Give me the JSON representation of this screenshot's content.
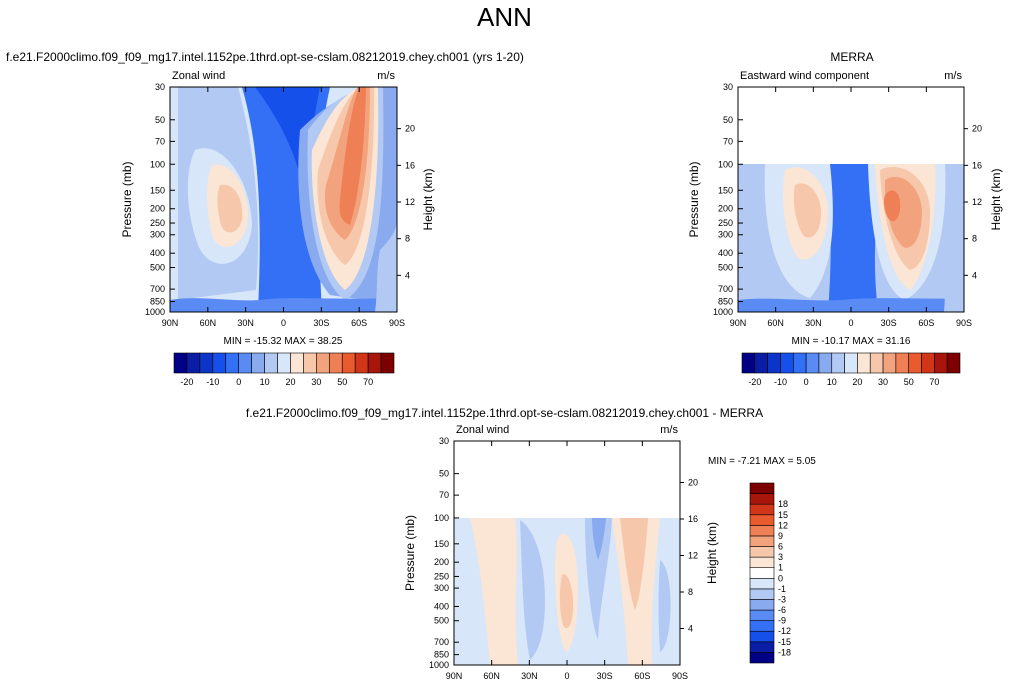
{
  "title": "ANN",
  "case_name": "f.e21.F2000climo.f09_f09_mg17.intel.1152pe.1thrd.opt-se-cslam.08212019.chey.ch001 (yrs 1-20)",
  "obs_name": "MERRA",
  "diff_name": "f.e21.F2000climo.f09_f09_mg17.intel.1152pe.1thrd.opt-se-cslam.08212019.chey.ch001 - MERRA",
  "panels": {
    "case": {
      "field": "Zonal wind",
      "units": "m/s",
      "min_max": "MIN = -15.32  MAX =  38.25"
    },
    "obs": {
      "field": "Eastward wind component",
      "units": "m/s",
      "min_max": "MIN = -10.17  MAX =  31.16"
    },
    "diff": {
      "field": "Zonal wind",
      "units": "m/s",
      "min_max": "MIN =  -7.21  MAX =   5.05"
    }
  },
  "axes": {
    "y_label": "Pressure (mb)",
    "y2_label": "Height (km)",
    "pressure_ticks": [
      "30",
      "50",
      "70",
      "100",
      "150",
      "200",
      "250",
      "300",
      "400",
      "500",
      "700",
      "850",
      "1000"
    ],
    "height_ticks": [
      "4",
      "8",
      "12",
      "16",
      "20"
    ],
    "lat_ticks": [
      "90N",
      "60N",
      "30N",
      "0",
      "30S",
      "60S",
      "90S"
    ]
  },
  "colors": {
    "wind_palette": [
      "#000087",
      "#0a1ea5",
      "#0c35c8",
      "#1550eb",
      "#3470f5",
      "#5a8bf5",
      "#8aaaf0",
      "#b2c9f3",
      "#d8e6fa",
      "#fbe5d4",
      "#f6c7ab",
      "#f2a37d",
      "#ef7f55",
      "#ea5a2f",
      "#d13618",
      "#a8150b",
      "#7d0000"
    ],
    "diff_palette": [
      "#000087",
      "#0a1ea5",
      "#1550eb",
      "#3470f5",
      "#5a8bf5",
      "#8aaaf0",
      "#b2c9f3",
      "#d8e6fa",
      "#ffffff",
      "#fbe5d4",
      "#f6c7ab",
      "#f2a37d",
      "#ef7f55",
      "#ea5a2f",
      "#d13618",
      "#a8150b",
      "#7d0000"
    ]
  },
  "chart_data": [
    {
      "type": "heatmap",
      "title": "Zonal wind",
      "units": "m/s",
      "xlabel": "",
      "ylabel": "Pressure (mb)",
      "y2label": "Height (km)",
      "x_range": [
        90,
        -90
      ],
      "y_range_mb": [
        1000,
        30
      ],
      "y_scale": "log",
      "contour_levels": [
        -20,
        -15,
        -10,
        -5,
        0,
        5,
        10,
        15,
        20,
        25,
        30,
        35,
        40,
        50,
        60,
        70
      ],
      "colorbar_labels": [
        "-20",
        "-10",
        "0",
        "10",
        "20",
        "30",
        "50",
        "70"
      ],
      "lat": [
        90,
        75,
        60,
        45,
        30,
        15,
        0,
        -15,
        -30,
        -45,
        -60,
        -75,
        -90
      ],
      "lev": [
        30,
        50,
        70,
        100,
        150,
        200,
        250,
        300,
        400,
        500,
        700,
        850,
        1000
      ],
      "values": [
        [
          0,
          2,
          4,
          3,
          -2,
          -12,
          -14,
          -12,
          5,
          25,
          35,
          20,
          0
        ],
        [
          0,
          2,
          4,
          3,
          -2,
          -12,
          -14,
          -12,
          2,
          20,
          30,
          15,
          0
        ],
        [
          0,
          3,
          6,
          6,
          -2,
          -10,
          -12,
          -10,
          5,
          18,
          25,
          12,
          0
        ],
        [
          0,
          4,
          8,
          12,
          2,
          -6,
          -8,
          -6,
          10,
          20,
          22,
          10,
          0
        ],
        [
          0,
          5,
          10,
          20,
          8,
          -4,
          -6,
          -4,
          15,
          30,
          26,
          8,
          0
        ],
        [
          0,
          5,
          12,
          24,
          12,
          -3,
          -5,
          -2,
          20,
          35,
          30,
          10,
          0
        ],
        [
          0,
          5,
          12,
          22,
          10,
          -4,
          -6,
          -3,
          18,
          32,
          28,
          10,
          0
        ],
        [
          0,
          4,
          10,
          18,
          8,
          -4,
          -6,
          -3,
          14,
          28,
          24,
          8,
          0
        ],
        [
          0,
          3,
          8,
          12,
          6,
          -4,
          -6,
          -3,
          10,
          22,
          18,
          6,
          0
        ],
        [
          0,
          2,
          6,
          8,
          4,
          -4,
          -6,
          -3,
          6,
          16,
          14,
          4,
          0
        ],
        [
          0,
          0,
          2,
          4,
          0,
          -6,
          -8,
          -4,
          2,
          8,
          8,
          0,
          0
        ],
        [
          0,
          -4,
          -2,
          2,
          -2,
          -8,
          -10,
          -6,
          0,
          4,
          4,
          -2,
          0
        ],
        [
          0,
          -5,
          -3,
          0,
          -3,
          -8,
          -10,
          -6,
          -2,
          2,
          2,
          -3,
          0
        ]
      ],
      "min": -15.32,
      "max": 38.25
    },
    {
      "type": "heatmap",
      "title": "Eastward wind component",
      "units": "m/s",
      "xlabel": "",
      "ylabel": "Pressure (mb)",
      "y2label": "Height (km)",
      "x_range": [
        90,
        -90
      ],
      "y_range_mb": [
        1000,
        30
      ],
      "y_scale": "log",
      "data_top_mb": 100,
      "contour_levels": [
        -20,
        -15,
        -10,
        -5,
        0,
        5,
        10,
        15,
        20,
        25,
        30,
        35,
        40,
        50,
        60,
        70
      ],
      "colorbar_labels": [
        "-20",
        "-10",
        "0",
        "10",
        "20",
        "30",
        "50",
        "70"
      ],
      "lat": [
        90,
        75,
        60,
        45,
        30,
        15,
        0,
        -15,
        -30,
        -45,
        -60,
        -75,
        -90
      ],
      "lev": [
        100,
        150,
        200,
        250,
        300,
        400,
        500,
        700,
        850,
        1000
      ],
      "values": [
        [
          0,
          4,
          10,
          18,
          8,
          -4,
          -6,
          -3,
          14,
          22,
          18,
          6,
          0
        ],
        [
          0,
          4,
          10,
          22,
          10,
          -4,
          -6,
          -2,
          18,
          28,
          22,
          8,
          0
        ],
        [
          0,
          4,
          10,
          24,
          12,
          -3,
          -5,
          -2,
          20,
          30,
          24,
          8,
          0
        ],
        [
          0,
          4,
          10,
          22,
          10,
          -4,
          -5,
          -3,
          18,
          28,
          24,
          8,
          0
        ],
        [
          0,
          3,
          8,
          18,
          8,
          -4,
          -5,
          -3,
          14,
          24,
          22,
          6,
          0
        ],
        [
          0,
          2,
          6,
          12,
          6,
          -4,
          -6,
          -3,
          10,
          18,
          16,
          4,
          0
        ],
        [
          0,
          2,
          4,
          8,
          4,
          -4,
          -6,
          -3,
          6,
          12,
          12,
          2,
          0
        ],
        [
          0,
          0,
          2,
          4,
          0,
          -6,
          -8,
          -4,
          2,
          6,
          6,
          0,
          0
        ],
        [
          0,
          -2,
          0,
          2,
          -2,
          -8,
          -10,
          -6,
          0,
          3,
          3,
          -2,
          0
        ],
        [
          0,
          -3,
          -1,
          0,
          -3,
          -8,
          -10,
          -6,
          -2,
          2,
          2,
          -3,
          0
        ]
      ],
      "min": -10.17,
      "max": 31.16
    },
    {
      "type": "heatmap",
      "title": "Zonal wind",
      "units": "m/s",
      "xlabel": "",
      "ylabel": "Pressure (mb)",
      "y2label": "Height (km)",
      "x_range": [
        90,
        -90
      ],
      "y_range_mb": [
        1000,
        30
      ],
      "y_scale": "log",
      "data_top_mb": 100,
      "contour_levels": [
        -18,
        -15,
        -12,
        -9,
        -6,
        -3,
        -1,
        0,
        1,
        3,
        6,
        9,
        12,
        15,
        18
      ],
      "colorbar_labels": [
        "-18",
        "-15",
        "-12",
        "-9",
        "-6",
        "-3",
        "-1",
        "0",
        "1",
        "3",
        "6",
        "9",
        "12",
        "15",
        "18"
      ],
      "lat": [
        90,
        75,
        60,
        45,
        30,
        15,
        0,
        -15,
        -30,
        -45,
        -60,
        -75,
        -90
      ],
      "lev": [
        100,
        150,
        200,
        250,
        300,
        400,
        500,
        700,
        850,
        1000
      ],
      "values": [
        [
          0,
          1,
          2,
          1,
          -1,
          -2,
          0,
          -2,
          -1,
          3,
          2,
          0,
          0
        ],
        [
          0,
          1,
          3,
          1,
          -1,
          -3,
          1,
          -3,
          -1,
          3,
          3,
          0,
          -1
        ],
        [
          0,
          2,
          3,
          2,
          -1,
          -2,
          2,
          -3,
          -1,
          4,
          2,
          -1,
          0
        ],
        [
          0,
          2,
          3,
          2,
          -1,
          -2,
          2,
          -2,
          -1,
          3,
          2,
          0,
          -1
        ],
        [
          0,
          2,
          3,
          2,
          -1,
          -1,
          3,
          -2,
          -1,
          3,
          2,
          -1,
          0
        ],
        [
          0,
          1,
          2,
          1,
          -1,
          -1,
          3,
          -2,
          -1,
          2,
          2,
          0,
          0
        ],
        [
          0,
          1,
          2,
          1,
          -1,
          -1,
          2,
          -1,
          -1,
          2,
          1,
          0,
          0
        ],
        [
          0,
          1,
          2,
          0,
          -1,
          -1,
          1,
          -1,
          0,
          1,
          1,
          0,
          0
        ],
        [
          0,
          0,
          1,
          0,
          -1,
          -1,
          1,
          -1,
          0,
          1,
          0,
          0,
          0
        ],
        [
          0,
          0,
          1,
          0,
          -1,
          -1,
          0,
          -1,
          0,
          1,
          0,
          0,
          0
        ]
      ],
      "min": -7.21,
      "max": 5.05
    }
  ]
}
